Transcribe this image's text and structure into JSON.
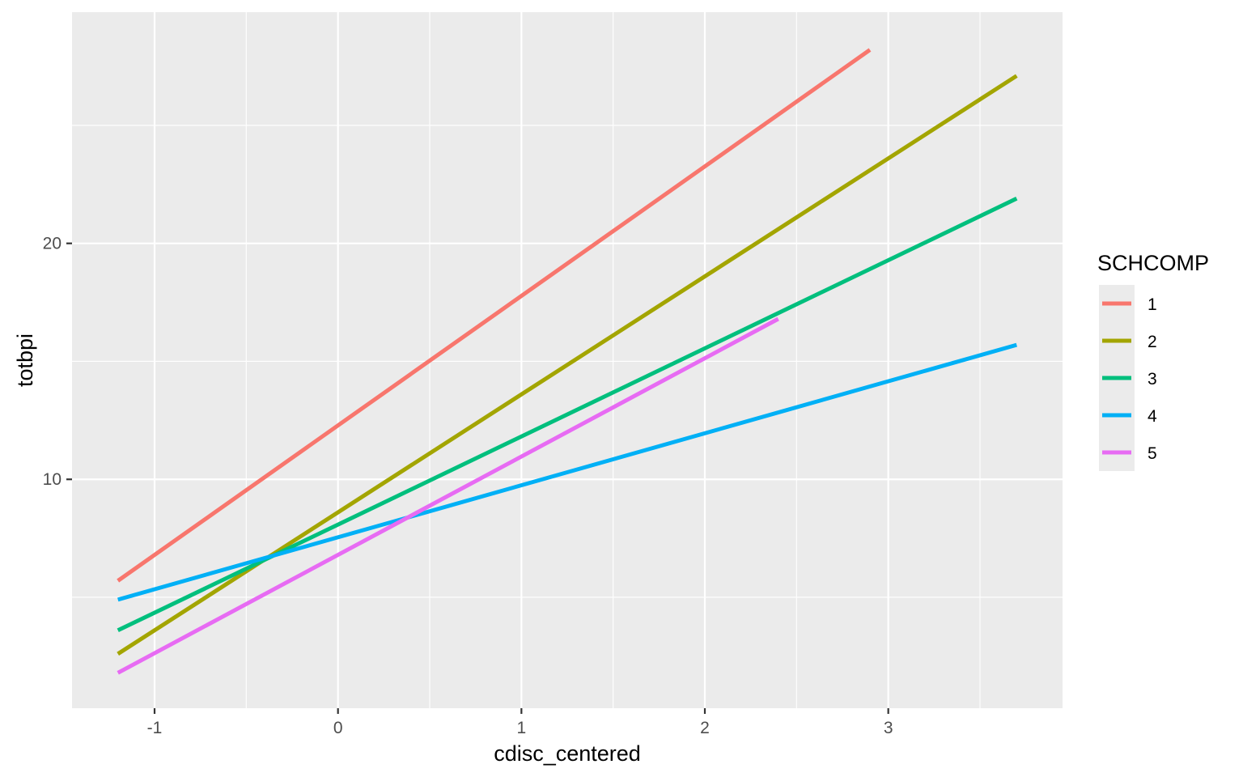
{
  "chart_data": {
    "type": "line",
    "xlabel": "cdisc_centered",
    "ylabel": "totbpi",
    "xlim": [
      -1.45,
      3.95
    ],
    "ylim": [
      0.3,
      29.8
    ],
    "x_ticks": [
      -1,
      0,
      1,
      2,
      3
    ],
    "x_tick_labels": [
      "-1",
      "0",
      "1",
      "2",
      "3"
    ],
    "y_ticks": [
      10,
      20
    ],
    "y_tick_labels": [
      "10",
      "20"
    ],
    "grid": true,
    "legend": {
      "title": "SCHCOMP",
      "position": "right"
    },
    "series": [
      {
        "name": "1",
        "color": "#F8766D",
        "x": [
          -1.2,
          2.9
        ],
        "y": [
          5.7,
          28.2
        ]
      },
      {
        "name": "2",
        "color": "#A3A500",
        "x": [
          -1.2,
          3.7
        ],
        "y": [
          2.6,
          27.1
        ]
      },
      {
        "name": "3",
        "color": "#00BF7D",
        "x": [
          -1.2,
          3.7
        ],
        "y": [
          3.6,
          21.9
        ]
      },
      {
        "name": "4",
        "color": "#00B0F6",
        "x": [
          -1.2,
          3.7
        ],
        "y": [
          4.9,
          15.7
        ]
      },
      {
        "name": "5",
        "color": "#E76BF3",
        "x": [
          -1.2,
          2.4
        ],
        "y": [
          1.8,
          16.8
        ]
      }
    ]
  }
}
